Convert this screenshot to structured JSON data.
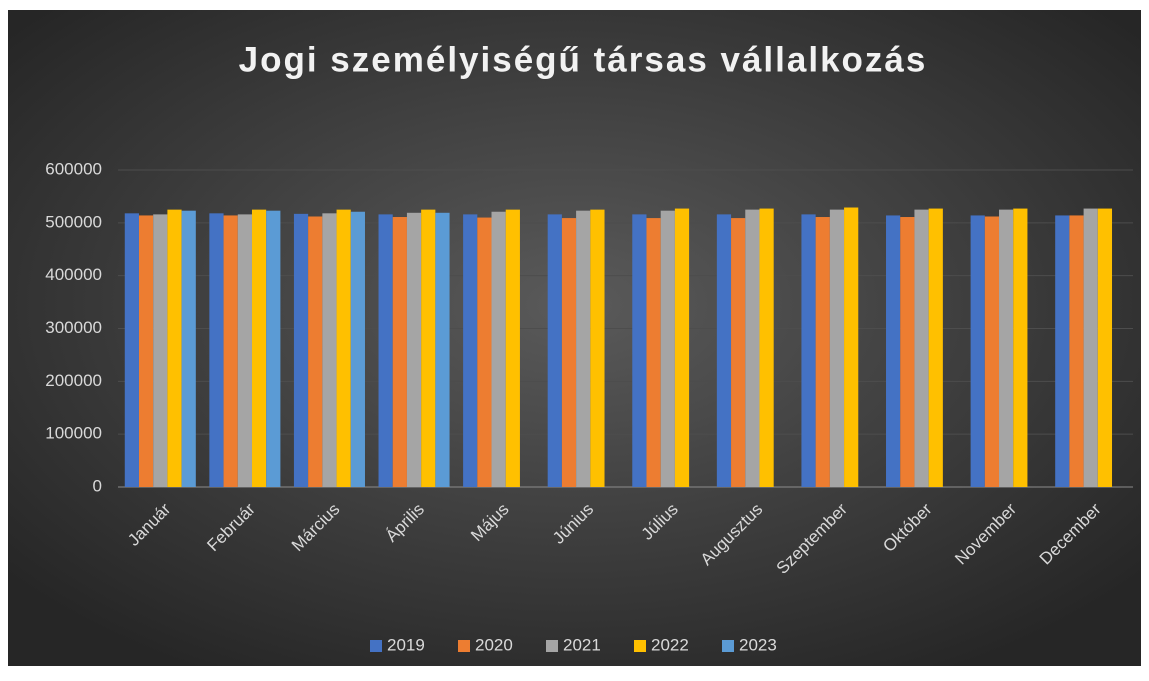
{
  "chart_data": {
    "type": "bar",
    "title": "Jogi személyiségű társas vállalkozás",
    "categories": [
      "Január",
      "Február",
      "Március",
      "Április",
      "Május",
      "Június",
      "Július",
      "Augusztus",
      "Szeptember",
      "Október",
      "November",
      "December"
    ],
    "series": [
      {
        "name": "2019",
        "color": "#4472c4",
        "values": [
          518000,
          518000,
          517000,
          516000,
          516000,
          516000,
          516000,
          516000,
          516000,
          514000,
          514000,
          514000
        ]
      },
      {
        "name": "2020",
        "color": "#ed7d31",
        "values": [
          514000,
          514000,
          512000,
          511000,
          510000,
          509000,
          509000,
          509000,
          511000,
          511000,
          512000,
          514000
        ]
      },
      {
        "name": "2021",
        "color": "#a5a5a5",
        "values": [
          516000,
          516000,
          518000,
          519000,
          521000,
          523000,
          523000,
          525000,
          525000,
          525000,
          525000,
          527000
        ]
      },
      {
        "name": "2022",
        "color": "#ffc000",
        "values": [
          525000,
          525000,
          525000,
          525000,
          525000,
          525000,
          527000,
          527000,
          529000,
          527000,
          527000,
          527000
        ]
      },
      {
        "name": "2023",
        "color": "#5b9bd5",
        "values": [
          523000,
          523000,
          521000,
          519000,
          null,
          null,
          null,
          null,
          null,
          null,
          null,
          null
        ]
      }
    ],
    "ylim": [
      0,
      600000
    ],
    "yticks": [
      0,
      100000,
      200000,
      300000,
      400000,
      500000,
      600000
    ],
    "grid": true,
    "legend": "bottom"
  }
}
